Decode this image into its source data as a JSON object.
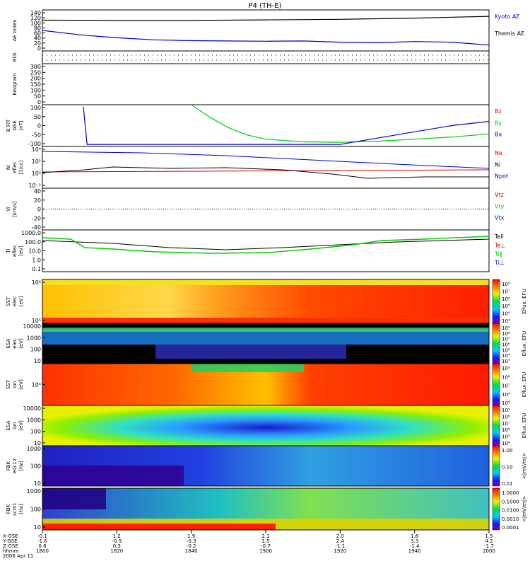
{
  "title": "P4 (TH-E)",
  "date_label": "2006 Apr 11",
  "colors": {
    "black": "#000000",
    "blue": "#0000cc",
    "red": "#cc0000",
    "green": "#00cc00"
  },
  "panels": [
    {
      "id": "ae",
      "ylabel": [
        "AE Index"
      ],
      "ticks": [
        "140",
        "120",
        "100",
        "80",
        "60",
        "40",
        "20",
        "0"
      ],
      "legend": [
        {
          "text": "Kyoto AE",
          "color": "#0000cc"
        },
        {
          "text": "Themis AE",
          "color": "#000000"
        }
      ]
    },
    {
      "id": "roi",
      "ylabel": [
        "ROI"
      ],
      "ticks": [],
      "legend": []
    },
    {
      "id": "keogram",
      "ylabel": [
        "Keogram"
      ],
      "ticks": [
        "300",
        "250",
        "200",
        "150",
        "100",
        "50",
        "0"
      ],
      "legend": []
    },
    {
      "id": "bfit",
      "ylabel": [
        "B FIT",
        "GSE",
        "[nT]"
      ],
      "ticks": [
        "100",
        "50",
        "0",
        "-50",
        "-100"
      ],
      "legend": [
        {
          "text": "Bz",
          "color": "#cc0000"
        },
        {
          "text": "By",
          "color": "#00cc00"
        },
        {
          "text": "Bx",
          "color": "#0000cc"
        }
      ]
    },
    {
      "id": "ni",
      "ylabel": [
        "Ni",
        "eflec",
        "[1/cc]"
      ],
      "ticks": [
        "10⁴",
        "10²",
        "10⁰",
        "10⁻²"
      ],
      "legend": [
        {
          "text": "Ne",
          "color": "#cc0000"
        },
        {
          "text": "Ni",
          "color": "#000000"
        },
        {
          "text": "Npot",
          "color": "#0000cc"
        }
      ]
    },
    {
      "id": "vi",
      "ylabel": [
        "Vi",
        "[km/s]"
      ],
      "ticks": [
        "40",
        "20",
        "0",
        "-20",
        "-40"
      ],
      "legend": [
        {
          "text": "Vtz",
          "color": "#cc0000"
        },
        {
          "text": "Vty",
          "color": "#00cc00"
        },
        {
          "text": "Vtx",
          "color": "#0000cc"
        }
      ]
    },
    {
      "id": "ti",
      "ylabel": [
        "Ti",
        "eflec",
        "[eV]"
      ],
      "ticks": [
        "1000.0",
        "100.0",
        "10.0",
        "1.0",
        "0.1"
      ],
      "legend": [
        {
          "text": "Tell",
          "color": "#000000"
        },
        {
          "text": "Te⊥",
          "color": "#cc0000"
        },
        {
          "text": "Ti‖",
          "color": "#00cc00"
        },
        {
          "text": "Ti⊥",
          "color": "#0000cc"
        }
      ]
    },
    {
      "id": "sst_e",
      "ylabel": [
        "SST",
        "elec",
        "[eV]"
      ],
      "ticks": [
        "10⁶",
        "10⁵"
      ],
      "legend": []
    },
    {
      "id": "esa_e",
      "ylabel": [
        "ESA",
        "elec",
        "[eV]"
      ],
      "ticks": [
        "10000",
        "1000",
        "100",
        "10"
      ],
      "legend": []
    },
    {
      "id": "sst_i",
      "ylabel": [
        "SST",
        "ion",
        "[eV]"
      ],
      "ticks": [
        "10⁵"
      ],
      "legend": []
    },
    {
      "id": "esa_i",
      "ylabel": [
        "ESA",
        "ion",
        "[eV]"
      ],
      "ticks": [
        "10000",
        "1000",
        "100",
        "10"
      ],
      "legend": []
    },
    {
      "id": "fbk1",
      "ylabel": [
        "FBK",
        "edc12",
        "[Hz]"
      ],
      "ticks": [
        "1000",
        "100",
        "10"
      ],
      "legend": []
    },
    {
      "id": "fbk2",
      "ylabel": [
        "FBK",
        "scm1",
        "[Hz]"
      ],
      "ticks": [
        "1000",
        "100",
        "10"
      ],
      "legend": []
    }
  ],
  "colorbars": [
    {
      "id": "cb_sst_e",
      "label": "Eflux, EFU",
      "ticks": [
        "10⁸",
        "10⁷",
        "10⁶",
        "10⁵",
        "10⁴",
        "10³"
      ]
    },
    {
      "id": "cb_esa_e",
      "label": "Eflux, EFU",
      "ticks": [
        "10⁹",
        "10⁸",
        "10⁷",
        "10⁶",
        "10⁵",
        "10⁴",
        "10³"
      ]
    },
    {
      "id": "cb_sst_i",
      "label": "Eflux, EFU",
      "ticks": [
        "10⁹",
        "10⁸",
        "10⁷",
        "10⁶",
        "10⁵"
      ]
    },
    {
      "id": "cb_esa_i",
      "label": "Eflux, EFU",
      "ticks": [
        "10⁹",
        "10⁸",
        "10⁷",
        "10⁶",
        "10⁵",
        "10⁴"
      ]
    },
    {
      "id": "cb_fbk1",
      "label": "<|mV/m|>",
      "ticks": [
        "1.00",
        "0.10",
        "0.01"
      ]
    },
    {
      "id": "cb_fbk2",
      "label": "<|mV/m|>",
      "ticks": [
        "1.0000",
        "0.1000",
        "0.0100",
        "0.0010",
        "0.0001"
      ]
    }
  ],
  "xaxis": {
    "row_labels": [
      "X-GSE",
      "Y-GSE",
      "Z-GSE",
      "hhmm"
    ],
    "ticks": [
      {
        "x": "-0.1",
        "y": "-1.6",
        "z": "0.6",
        "t": "1800"
      },
      {
        "x": "1.2",
        "y": "-0.9",
        "z": "0.3",
        "t": "1820"
      },
      {
        "x": "1.9",
        "y": "-0.3",
        "z": "-0.2",
        "t": "1840"
      },
      {
        "x": "2.1",
        "y": "1.5",
        "z": "-0.7",
        "t": "1900"
      },
      {
        "x": "2.0",
        "y": "2.4",
        "z": "-1.1",
        "t": "1920"
      },
      {
        "x": "1.8",
        "y": "3.3",
        "z": "-1.4",
        "t": "1940"
      },
      {
        "x": "1.5",
        "y": "4.2",
        "z": "-1.7",
        "t": "2000"
      }
    ]
  },
  "chart_data": {
    "type": "line",
    "title": "P4 (TH-E)",
    "x_range": [
      "1800",
      "2000"
    ],
    "series": [
      {
        "name": "Kyoto AE",
        "panel": "ae",
        "x": [
          1800,
          1810,
          1820,
          1830,
          1840,
          1850,
          1900,
          1910,
          1920,
          1930,
          1940,
          1950,
          2000
        ],
        "values": [
          70,
          55,
          45,
          38,
          35,
          34,
          33,
          34,
          30,
          28,
          32,
          30,
          20
        ]
      },
      {
        "name": "Themis AE",
        "panel": "ae",
        "x": [
          1800,
          1820,
          1840,
          1900,
          1920,
          1940,
          2000
        ],
        "values": [
          105,
          104,
          104,
          106,
          108,
          112,
          118
        ]
      },
      {
        "name": "By",
        "panel": "bfit",
        "x": [
          1840,
          1845,
          1850,
          1855,
          1900,
          1910,
          1920,
          1930,
          1940,
          1950,
          2000
        ],
        "values": [
          100,
          40,
          -10,
          -45,
          -65,
          -78,
          -80,
          -75,
          -65,
          -55,
          -40
        ]
      },
      {
        "name": "Bx",
        "panel": "bfit",
        "x": [
          1811,
          1812,
          1920,
          1930,
          1940,
          1950,
          2000
        ],
        "values": [
          90,
          -90,
          -90,
          -60,
          -30,
          0,
          20
        ]
      }
    ]
  }
}
